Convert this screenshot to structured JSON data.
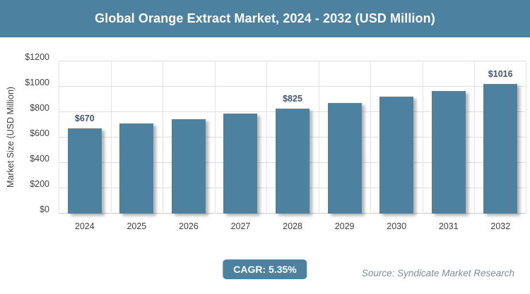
{
  "header": {
    "title": "Global Orange Extract Market, 2024 - 2032 (USD Million)"
  },
  "chart_data": {
    "type": "bar",
    "title": "Global Orange Extract Market, 2024 - 2032 (USD Million)",
    "categories": [
      "2024",
      "2025",
      "2026",
      "2027",
      "2028",
      "2029",
      "2030",
      "2031",
      "2032"
    ],
    "values": [
      670,
      706,
      744,
      783,
      825,
      869,
      916,
      965,
      1016
    ],
    "data_labels": [
      "$670",
      "",
      "",
      "",
      "$825",
      "",
      "",
      "",
      "$1016"
    ],
    "xlabel": "",
    "ylabel": "Market Size (USD Million)",
    "ylim": [
      0,
      1200
    ],
    "ytick_labels": [
      "$0",
      "$200",
      "$400",
      "$600",
      "$800",
      "$1000",
      "$1200"
    ],
    "grid": true,
    "legend": "none"
  },
  "colors": {
    "accent": "#4C82A0",
    "bar": "#4C82A0",
    "data_label": "#44546A",
    "axis_text": "#404040",
    "source_text": "#7E8B95",
    "title_text": "#FFFFFF"
  },
  "footer": {
    "cagr_label": "CAGR: 5.35%",
    "source": "Source: Syndicate Market Research"
  }
}
